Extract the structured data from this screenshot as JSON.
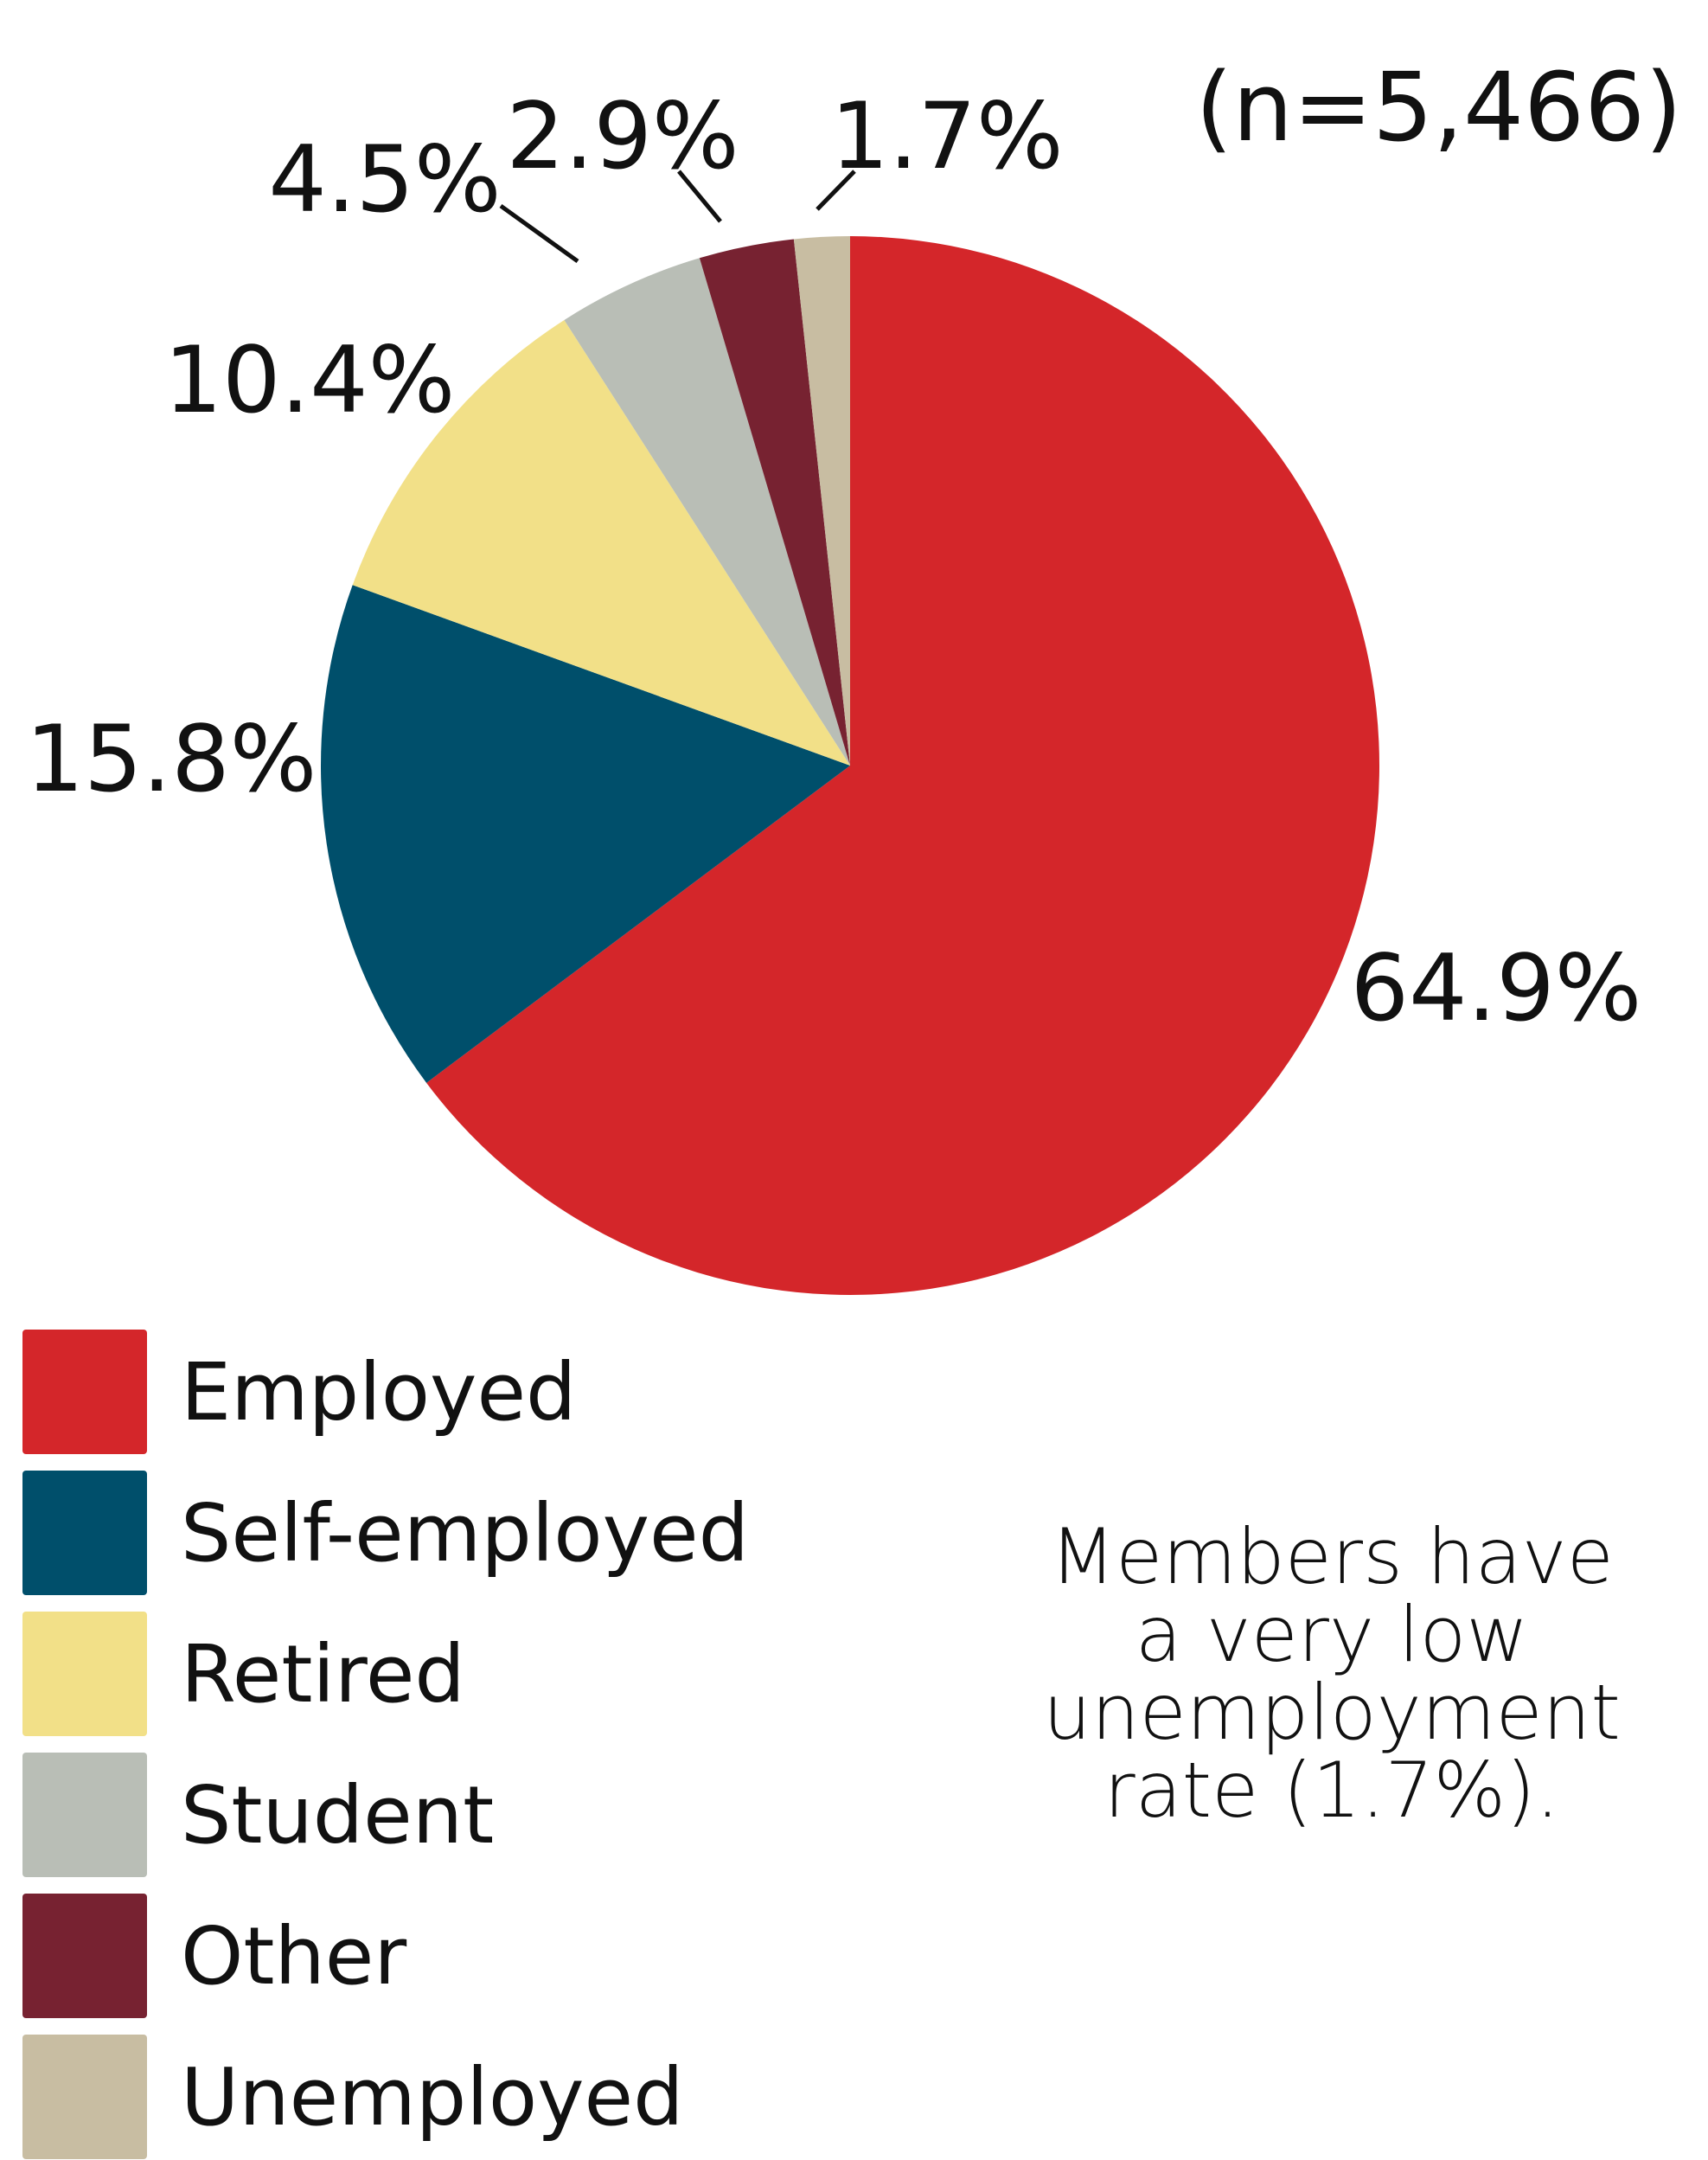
{
  "chart_data": {
    "type": "pie",
    "categories": [
      "Employed",
      "Self-employed",
      "Retired",
      "Student",
      "Other",
      "Unemployed"
    ],
    "values": [
      64.9,
      15.8,
      10.4,
      4.5,
      2.9,
      1.7
    ],
    "labels": [
      "64.9%",
      "15.8%",
      "10.4%",
      "4.5%",
      "2.9%",
      "1.7%"
    ],
    "colors": [
      "#d4262a",
      "#004f6b",
      "#f2e088",
      "#b9beb6",
      "#772231",
      "#c8bda2"
    ],
    "sample_size": "(n=5,466)",
    "legend_position": "bottom-left",
    "note_lines": [
      "Members have",
      "a very low",
      "unemployment",
      "rate (1.7%)."
    ]
  }
}
